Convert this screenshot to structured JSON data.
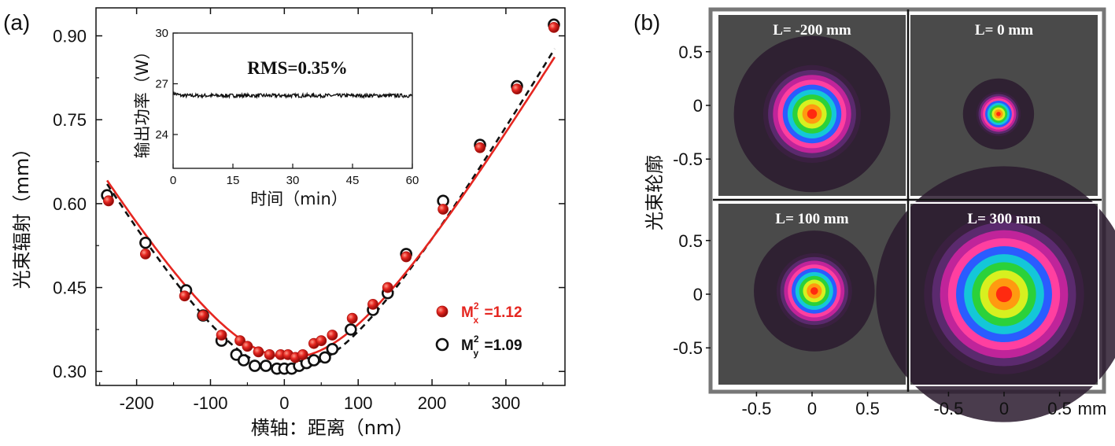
{
  "chart_data": [
    {
      "panel": "(a)",
      "type": "scatter",
      "xlabel": "横轴：距离（nm）",
      "ylabel": "光束辐射（mm）",
      "xlim": [
        -255,
        380
      ],
      "ylim": [
        0.275,
        0.95
      ],
      "xticks": [
        -200,
        -100,
        0,
        100,
        200,
        300
      ],
      "yticks": [
        0.3,
        0.45,
        0.6,
        0.75,
        0.9
      ],
      "ytick_labels": [
        "0.30",
        "0.45",
        "0.60",
        "0.75",
        "0.90"
      ],
      "legend_placement": "bottom-right",
      "series": [
        {
          "name": "M_x^2 =1.12",
          "legend_base": "M",
          "legend_sup": "2",
          "legend_sub": "x",
          "legend_value": "=1.12",
          "color": "#e52620",
          "marker": "filled-sphere",
          "line": "solid",
          "x": [
            -238,
            -188,
            -135,
            -110,
            -85,
            -60,
            -50,
            -35,
            -20,
            -5,
            5,
            15,
            25,
            40,
            50,
            65,
            92,
            120,
            140,
            165,
            215,
            265,
            315,
            365
          ],
          "y": [
            0.605,
            0.51,
            0.435,
            0.4,
            0.365,
            0.355,
            0.345,
            0.335,
            0.33,
            0.33,
            0.33,
            0.325,
            0.33,
            0.35,
            0.355,
            0.365,
            0.395,
            0.42,
            0.45,
            0.505,
            0.59,
            0.7,
            0.805,
            0.915
          ]
        },
        {
          "name": "M_y^2 =1.09",
          "legend_base": "M",
          "legend_sup": "2",
          "legend_sub": "y",
          "legend_value": "=1.09",
          "color": "#111111",
          "marker": "open-circle",
          "line": "dashed",
          "x": [
            -240,
            -188,
            -133,
            -110,
            -85,
            -65,
            -55,
            -40,
            -25,
            -10,
            0,
            10,
            20,
            30,
            40,
            55,
            65,
            90,
            120,
            140,
            165,
            215,
            265,
            315,
            365
          ],
          "y": [
            0.615,
            0.53,
            0.445,
            0.4,
            0.355,
            0.33,
            0.32,
            0.31,
            0.31,
            0.305,
            0.305,
            0.305,
            0.31,
            0.315,
            0.32,
            0.325,
            0.34,
            0.375,
            0.41,
            0.44,
            0.51,
            0.605,
            0.705,
            0.81,
            0.92
          ]
        }
      ],
      "inset": {
        "type": "line",
        "annotation": "RMS=0.35%",
        "xlabel": "时间（min）",
        "ylabel": "输出功率（W）",
        "xlim": [
          0,
          60
        ],
        "ylim": [
          22,
          30
        ],
        "xticks": [
          0,
          15,
          30,
          45,
          60
        ],
        "yticks": [
          24,
          27,
          30
        ],
        "mean_value": 26.3,
        "color": "#111111"
      }
    },
    {
      "panel": "(b)",
      "type": "heatmap",
      "ylabel": "光束轮廓",
      "x_unit": "mm",
      "xticks": [
        -0.5,
        0,
        0.5
      ],
      "xtick_labels": [
        "-0.5",
        "0",
        "0.5"
      ],
      "yticks": [
        0.5,
        0,
        -0.5
      ],
      "ytick_labels": [
        "0.5",
        "0",
        "-0.5"
      ],
      "xlim": [
        -0.85,
        0.85
      ],
      "ylim": [
        -0.85,
        0.85
      ],
      "colormap": [
        "#3a2040",
        "#5b2a6e",
        "#c0249a",
        "#ff3fa0",
        "#2a5cff",
        "#14c7d8",
        "#2bd13a",
        "#d7f020",
        "#ff9a10",
        "#ff2a10"
      ],
      "background_color": "#4a4a4a",
      "panels": [
        {
          "label": "L= -200 mm",
          "spot_radius_mm": 0.44,
          "center_mm": [
            0.0,
            -0.08
          ]
        },
        {
          "label": "L= 0 mm",
          "spot_radius_mm": 0.2,
          "center_mm": [
            -0.05,
            -0.08
          ]
        },
        {
          "label": "L= 100 mm",
          "spot_radius_mm": 0.34,
          "center_mm": [
            0.02,
            0.03
          ]
        },
        {
          "label": "L= 300 mm",
          "spot_radius_mm": 0.72,
          "center_mm": [
            0.0,
            0.0
          ]
        }
      ]
    }
  ]
}
